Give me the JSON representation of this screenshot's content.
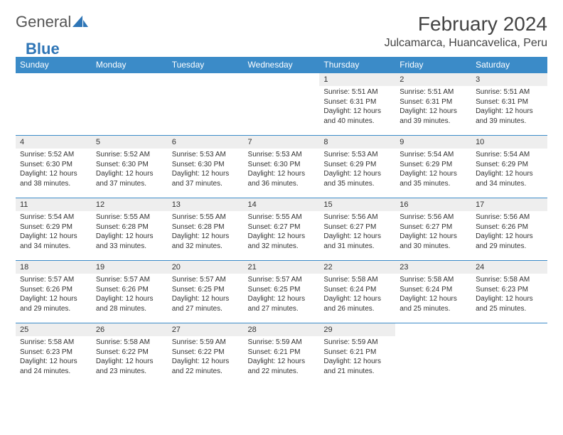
{
  "logo": {
    "text1": "General",
    "text2": "Blue"
  },
  "title": "February 2024",
  "location": "Julcamarca, Huancavelica, Peru",
  "colors": {
    "header_bg": "#3b8bc8",
    "daynum_bg": "#eeeeee",
    "border": "#3b8bc8",
    "logo_blue": "#2e75b6"
  },
  "columns": [
    "Sunday",
    "Monday",
    "Tuesday",
    "Wednesday",
    "Thursday",
    "Friday",
    "Saturday"
  ],
  "weeks": [
    [
      {
        "empty": true
      },
      {
        "empty": true
      },
      {
        "empty": true
      },
      {
        "empty": true
      },
      {
        "n": "1",
        "sr": "5:51 AM",
        "ss": "6:31 PM",
        "dl": "12 hours and 40 minutes."
      },
      {
        "n": "2",
        "sr": "5:51 AM",
        "ss": "6:31 PM",
        "dl": "12 hours and 39 minutes."
      },
      {
        "n": "3",
        "sr": "5:51 AM",
        "ss": "6:31 PM",
        "dl": "12 hours and 39 minutes."
      }
    ],
    [
      {
        "n": "4",
        "sr": "5:52 AM",
        "ss": "6:30 PM",
        "dl": "12 hours and 38 minutes."
      },
      {
        "n": "5",
        "sr": "5:52 AM",
        "ss": "6:30 PM",
        "dl": "12 hours and 37 minutes."
      },
      {
        "n": "6",
        "sr": "5:53 AM",
        "ss": "6:30 PM",
        "dl": "12 hours and 37 minutes."
      },
      {
        "n": "7",
        "sr": "5:53 AM",
        "ss": "6:30 PM",
        "dl": "12 hours and 36 minutes."
      },
      {
        "n": "8",
        "sr": "5:53 AM",
        "ss": "6:29 PM",
        "dl": "12 hours and 35 minutes."
      },
      {
        "n": "9",
        "sr": "5:54 AM",
        "ss": "6:29 PM",
        "dl": "12 hours and 35 minutes."
      },
      {
        "n": "10",
        "sr": "5:54 AM",
        "ss": "6:29 PM",
        "dl": "12 hours and 34 minutes."
      }
    ],
    [
      {
        "n": "11",
        "sr": "5:54 AM",
        "ss": "6:29 PM",
        "dl": "12 hours and 34 minutes."
      },
      {
        "n": "12",
        "sr": "5:55 AM",
        "ss": "6:28 PM",
        "dl": "12 hours and 33 minutes."
      },
      {
        "n": "13",
        "sr": "5:55 AM",
        "ss": "6:28 PM",
        "dl": "12 hours and 32 minutes."
      },
      {
        "n": "14",
        "sr": "5:55 AM",
        "ss": "6:27 PM",
        "dl": "12 hours and 32 minutes."
      },
      {
        "n": "15",
        "sr": "5:56 AM",
        "ss": "6:27 PM",
        "dl": "12 hours and 31 minutes."
      },
      {
        "n": "16",
        "sr": "5:56 AM",
        "ss": "6:27 PM",
        "dl": "12 hours and 30 minutes."
      },
      {
        "n": "17",
        "sr": "5:56 AM",
        "ss": "6:26 PM",
        "dl": "12 hours and 29 minutes."
      }
    ],
    [
      {
        "n": "18",
        "sr": "5:57 AM",
        "ss": "6:26 PM",
        "dl": "12 hours and 29 minutes."
      },
      {
        "n": "19",
        "sr": "5:57 AM",
        "ss": "6:26 PM",
        "dl": "12 hours and 28 minutes."
      },
      {
        "n": "20",
        "sr": "5:57 AM",
        "ss": "6:25 PM",
        "dl": "12 hours and 27 minutes."
      },
      {
        "n": "21",
        "sr": "5:57 AM",
        "ss": "6:25 PM",
        "dl": "12 hours and 27 minutes."
      },
      {
        "n": "22",
        "sr": "5:58 AM",
        "ss": "6:24 PM",
        "dl": "12 hours and 26 minutes."
      },
      {
        "n": "23",
        "sr": "5:58 AM",
        "ss": "6:24 PM",
        "dl": "12 hours and 25 minutes."
      },
      {
        "n": "24",
        "sr": "5:58 AM",
        "ss": "6:23 PM",
        "dl": "12 hours and 25 minutes."
      }
    ],
    [
      {
        "n": "25",
        "sr": "5:58 AM",
        "ss": "6:23 PM",
        "dl": "12 hours and 24 minutes."
      },
      {
        "n": "26",
        "sr": "5:58 AM",
        "ss": "6:22 PM",
        "dl": "12 hours and 23 minutes."
      },
      {
        "n": "27",
        "sr": "5:59 AM",
        "ss": "6:22 PM",
        "dl": "12 hours and 22 minutes."
      },
      {
        "n": "28",
        "sr": "5:59 AM",
        "ss": "6:21 PM",
        "dl": "12 hours and 22 minutes."
      },
      {
        "n": "29",
        "sr": "5:59 AM",
        "ss": "6:21 PM",
        "dl": "12 hours and 21 minutes."
      },
      {
        "empty": true
      },
      {
        "empty": true
      }
    ]
  ],
  "labels": {
    "sunrise": "Sunrise: ",
    "sunset": "Sunset: ",
    "daylight": "Daylight: "
  }
}
